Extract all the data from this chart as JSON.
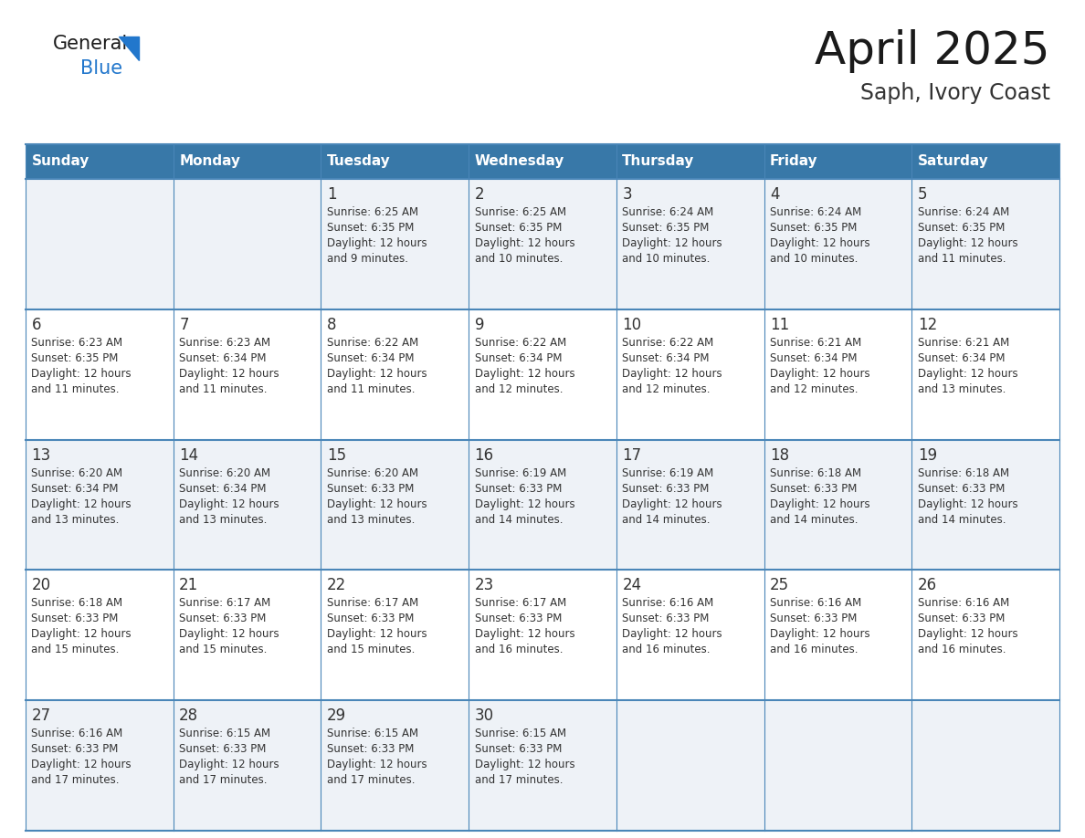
{
  "title": "April 2025",
  "subtitle": "Saph, Ivory Coast",
  "days_of_week": [
    "Sunday",
    "Monday",
    "Tuesday",
    "Wednesday",
    "Thursday",
    "Friday",
    "Saturday"
  ],
  "header_bg": "#3878a8",
  "header_text": "#ffffff",
  "row_bg_odd": "#eef2f7",
  "row_bg_even": "#ffffff",
  "border_color": "#4a86b8",
  "text_color": "#333333",
  "calendar_data": [
    [
      null,
      null,
      {
        "day": 1,
        "sunrise": "6:25 AM",
        "sunset": "6:35 PM",
        "daylight": "12 hours\nand 9 minutes."
      },
      {
        "day": 2,
        "sunrise": "6:25 AM",
        "sunset": "6:35 PM",
        "daylight": "12 hours\nand 10 minutes."
      },
      {
        "day": 3,
        "sunrise": "6:24 AM",
        "sunset": "6:35 PM",
        "daylight": "12 hours\nand 10 minutes."
      },
      {
        "day": 4,
        "sunrise": "6:24 AM",
        "sunset": "6:35 PM",
        "daylight": "12 hours\nand 10 minutes."
      },
      {
        "day": 5,
        "sunrise": "6:24 AM",
        "sunset": "6:35 PM",
        "daylight": "12 hours\nand 11 minutes."
      }
    ],
    [
      {
        "day": 6,
        "sunrise": "6:23 AM",
        "sunset": "6:35 PM",
        "daylight": "12 hours\nand 11 minutes."
      },
      {
        "day": 7,
        "sunrise": "6:23 AM",
        "sunset": "6:34 PM",
        "daylight": "12 hours\nand 11 minutes."
      },
      {
        "day": 8,
        "sunrise": "6:22 AM",
        "sunset": "6:34 PM",
        "daylight": "12 hours\nand 11 minutes."
      },
      {
        "day": 9,
        "sunrise": "6:22 AM",
        "sunset": "6:34 PM",
        "daylight": "12 hours\nand 12 minutes."
      },
      {
        "day": 10,
        "sunrise": "6:22 AM",
        "sunset": "6:34 PM",
        "daylight": "12 hours\nand 12 minutes."
      },
      {
        "day": 11,
        "sunrise": "6:21 AM",
        "sunset": "6:34 PM",
        "daylight": "12 hours\nand 12 minutes."
      },
      {
        "day": 12,
        "sunrise": "6:21 AM",
        "sunset": "6:34 PM",
        "daylight": "12 hours\nand 13 minutes."
      }
    ],
    [
      {
        "day": 13,
        "sunrise": "6:20 AM",
        "sunset": "6:34 PM",
        "daylight": "12 hours\nand 13 minutes."
      },
      {
        "day": 14,
        "sunrise": "6:20 AM",
        "sunset": "6:34 PM",
        "daylight": "12 hours\nand 13 minutes."
      },
      {
        "day": 15,
        "sunrise": "6:20 AM",
        "sunset": "6:33 PM",
        "daylight": "12 hours\nand 13 minutes."
      },
      {
        "day": 16,
        "sunrise": "6:19 AM",
        "sunset": "6:33 PM",
        "daylight": "12 hours\nand 14 minutes."
      },
      {
        "day": 17,
        "sunrise": "6:19 AM",
        "sunset": "6:33 PM",
        "daylight": "12 hours\nand 14 minutes."
      },
      {
        "day": 18,
        "sunrise": "6:18 AM",
        "sunset": "6:33 PM",
        "daylight": "12 hours\nand 14 minutes."
      },
      {
        "day": 19,
        "sunrise": "6:18 AM",
        "sunset": "6:33 PM",
        "daylight": "12 hours\nand 14 minutes."
      }
    ],
    [
      {
        "day": 20,
        "sunrise": "6:18 AM",
        "sunset": "6:33 PM",
        "daylight": "12 hours\nand 15 minutes."
      },
      {
        "day": 21,
        "sunrise": "6:17 AM",
        "sunset": "6:33 PM",
        "daylight": "12 hours\nand 15 minutes."
      },
      {
        "day": 22,
        "sunrise": "6:17 AM",
        "sunset": "6:33 PM",
        "daylight": "12 hours\nand 15 minutes."
      },
      {
        "day": 23,
        "sunrise": "6:17 AM",
        "sunset": "6:33 PM",
        "daylight": "12 hours\nand 16 minutes."
      },
      {
        "day": 24,
        "sunrise": "6:16 AM",
        "sunset": "6:33 PM",
        "daylight": "12 hours\nand 16 minutes."
      },
      {
        "day": 25,
        "sunrise": "6:16 AM",
        "sunset": "6:33 PM",
        "daylight": "12 hours\nand 16 minutes."
      },
      {
        "day": 26,
        "sunrise": "6:16 AM",
        "sunset": "6:33 PM",
        "daylight": "12 hours\nand 16 minutes."
      }
    ],
    [
      {
        "day": 27,
        "sunrise": "6:16 AM",
        "sunset": "6:33 PM",
        "daylight": "12 hours\nand 17 minutes."
      },
      {
        "day": 28,
        "sunrise": "6:15 AM",
        "sunset": "6:33 PM",
        "daylight": "12 hours\nand 17 minutes."
      },
      {
        "day": 29,
        "sunrise": "6:15 AM",
        "sunset": "6:33 PM",
        "daylight": "12 hours\nand 17 minutes."
      },
      {
        "day": 30,
        "sunrise": "6:15 AM",
        "sunset": "6:33 PM",
        "daylight": "12 hours\nand 17 minutes."
      },
      null,
      null,
      null
    ]
  ],
  "logo_color_general": "#1a1a1a",
  "logo_color_blue": "#2277cc",
  "logo_triangle_color": "#2277cc"
}
